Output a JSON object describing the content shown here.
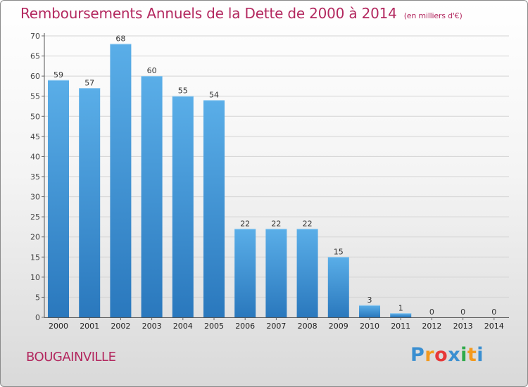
{
  "header": {
    "title": "Remboursements Annuels de la Dette de 2000 à 2014",
    "unit": "(en milliers d'€)"
  },
  "footer": {
    "city": "BOUGAINVILLE",
    "logo_letters": [
      "P",
      "r",
      "o",
      "x",
      "i",
      "t",
      "i"
    ],
    "logo_colors": [
      "#3a8fd1",
      "#f39a1e",
      "#e73838",
      "#3a8fd1",
      "#2faa4a",
      "#f39a1e",
      "#3a8fd1"
    ]
  },
  "chart_data": {
    "type": "bar",
    "title": "Remboursements Annuels de la Dette de 2000 à 2014",
    "categories": [
      "2000",
      "2001",
      "2002",
      "2003",
      "2004",
      "2005",
      "2006",
      "2007",
      "2008",
      "2009",
      "2010",
      "2011",
      "2012",
      "2013",
      "2014"
    ],
    "values": [
      59,
      57,
      68,
      60,
      55,
      54,
      22,
      22,
      22,
      15,
      3,
      1,
      0,
      0,
      0
    ],
    "value_labels": [
      "59",
      "57",
      "68",
      "60",
      "55",
      "54",
      "22",
      "22",
      "22",
      "15",
      "3",
      "1",
      "0",
      "0",
      "0"
    ],
    "ylim": [
      0,
      70
    ],
    "yticks": [
      0,
      5,
      10,
      15,
      20,
      25,
      30,
      35,
      40,
      45,
      50,
      55,
      60,
      65,
      70
    ],
    "ytick_labels": [
      "0",
      "5",
      "10",
      "15",
      "20",
      "25",
      "30",
      "35",
      "40",
      "45",
      "50",
      "55",
      "60",
      "65",
      "70"
    ],
    "grid": true,
    "bar_color_top": "#5aaee8",
    "bar_color_bottom": "#2a78bd"
  }
}
